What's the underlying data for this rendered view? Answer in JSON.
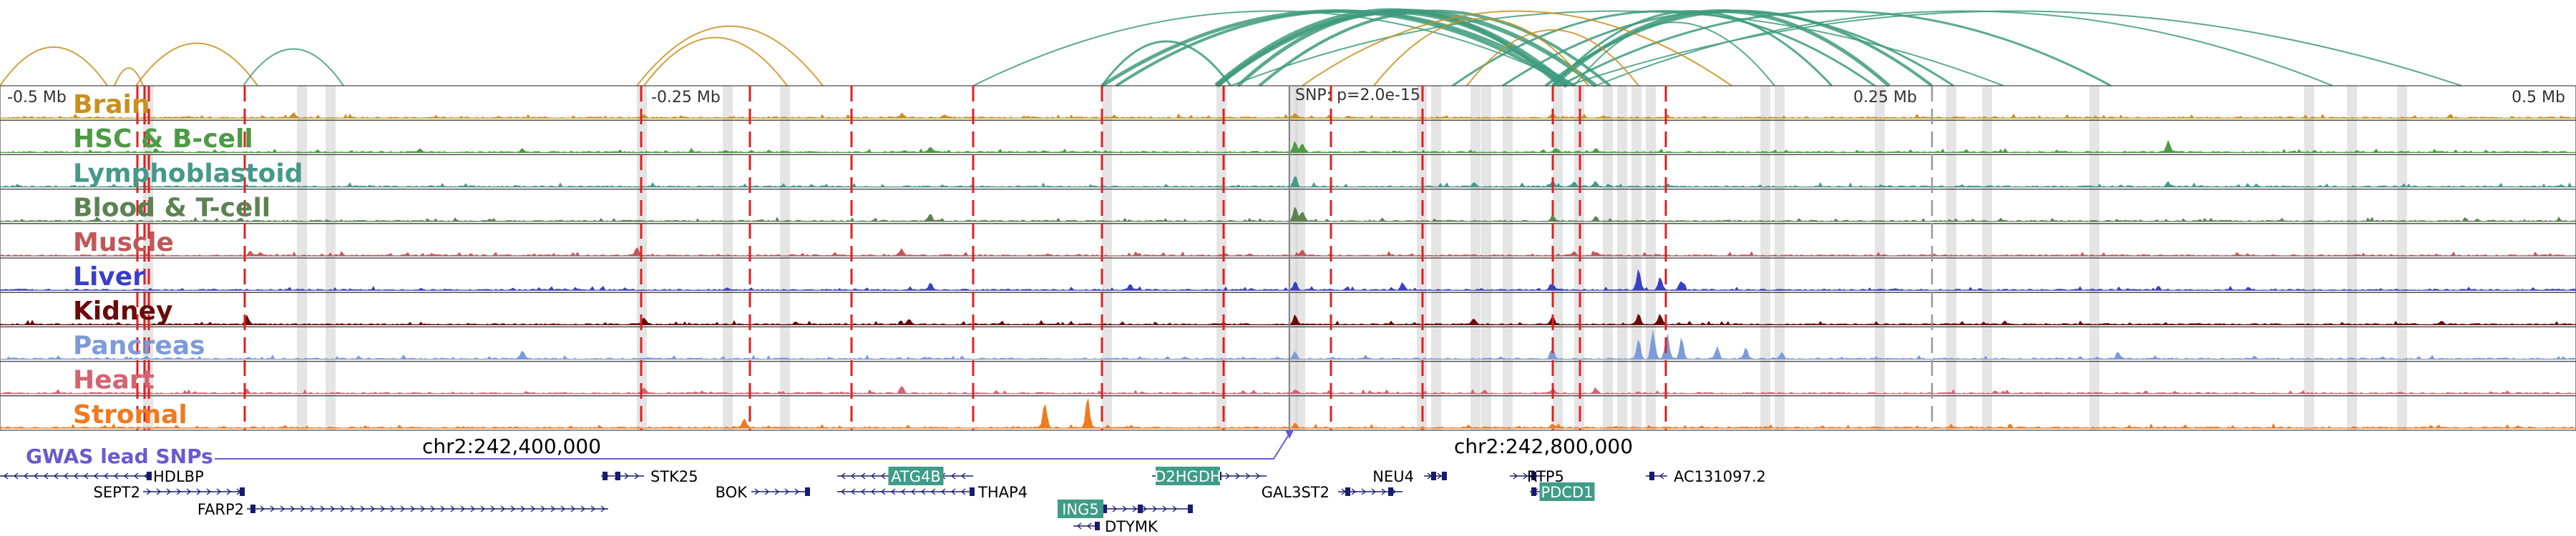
{
  "chart_data": {
    "type": "area",
    "region": {
      "range_labels": [
        "-0.5 Mb",
        "-0.25 Mb",
        "0.25 Mb",
        "0.5 Mb"
      ],
      "coordinate_labels": [
        "chr2:242,400,000",
        "chr2:242,800,000"
      ],
      "snp_label": "SNP: p=2.0e-15",
      "gwas_label": "GWAS lead SNPs"
    },
    "tracks": [
      {
        "name": "Brain",
        "color": "#c8901e",
        "peaks": [
          [
            410,
            7
          ],
          [
            900,
            5
          ],
          [
            1260,
            6
          ],
          [
            1320,
            5
          ],
          [
            1810,
            6
          ],
          [
            2170,
            5
          ]
        ]
      },
      {
        "name": "HSC & B-cell",
        "color": "#4e9a46",
        "peaks": [
          [
            1300,
            8
          ],
          [
            1810,
            14
          ],
          [
            1820,
            12
          ],
          [
            2175,
            6
          ],
          [
            2230,
            5
          ],
          [
            3030,
            16
          ]
        ]
      },
      {
        "name": "Lymphoblastoid",
        "color": "#46988a",
        "peaks": [
          [
            1810,
            16
          ],
          [
            2060,
            5
          ],
          [
            2170,
            8
          ],
          [
            2200,
            6
          ],
          [
            2230,
            7
          ],
          [
            3030,
            6
          ]
        ]
      },
      {
        "name": "Blood & T-cell",
        "color": "#5d8252",
        "peaks": [
          [
            1300,
            10
          ],
          [
            1810,
            22
          ],
          [
            1820,
            14
          ],
          [
            2170,
            6
          ],
          [
            2230,
            6
          ]
        ]
      },
      {
        "name": "Muscle",
        "color": "#c0585a",
        "peaks": [
          [
            350,
            6
          ],
          [
            890,
            12
          ],
          [
            1260,
            10
          ],
          [
            1820,
            8
          ],
          [
            2200,
            6
          ],
          [
            2230,
            5
          ]
        ]
      },
      {
        "name": "Liver",
        "color": "#3a3fc8",
        "peaks": [
          [
            1300,
            10
          ],
          [
            1580,
            8
          ],
          [
            1810,
            12
          ],
          [
            1960,
            10
          ],
          [
            2170,
            7
          ],
          [
            2290,
            30
          ],
          [
            2320,
            18
          ],
          [
            2350,
            12
          ]
        ]
      },
      {
        "name": "Kidney",
        "color": "#6a0b0a",
        "peaks": [
          [
            345,
            12
          ],
          [
            900,
            10
          ],
          [
            1270,
            8
          ],
          [
            1810,
            14
          ],
          [
            2060,
            8
          ],
          [
            2170,
            12
          ],
          [
            2290,
            16
          ],
          [
            2320,
            14
          ]
        ]
      },
      {
        "name": "Pancreas",
        "color": "#7d9bd8",
        "peaks": [
          [
            730,
            12
          ],
          [
            1810,
            10
          ],
          [
            2170,
            14
          ],
          [
            2290,
            28
          ],
          [
            2310,
            42
          ],
          [
            2330,
            36
          ],
          [
            2350,
            26
          ],
          [
            2400,
            18
          ],
          [
            2440,
            16
          ],
          [
            2490,
            10
          ],
          [
            2960,
            10
          ]
        ]
      },
      {
        "name": "Heart",
        "color": "#d46470",
        "peaks": [
          [
            345,
            6
          ],
          [
            900,
            8
          ],
          [
            1260,
            10
          ],
          [
            1810,
            6
          ],
          [
            2170,
            6
          ],
          [
            2230,
            5
          ]
        ]
      },
      {
        "name": "Stromal",
        "color": "#f07a1e",
        "peaks": [
          [
            1040,
            12
          ],
          [
            1460,
            36
          ],
          [
            1520,
            46
          ],
          [
            1810,
            6
          ],
          [
            2170,
            5
          ]
        ]
      }
    ],
    "genes": [
      {
        "name": "HDLBP",
        "highlight": false
      },
      {
        "name": "SEPT2",
        "highlight": false
      },
      {
        "name": "FARP2",
        "highlight": false
      },
      {
        "name": "STK25",
        "highlight": false
      },
      {
        "name": "BOK",
        "highlight": false
      },
      {
        "name": "ATG4B",
        "highlight": true
      },
      {
        "name": "THAP4",
        "highlight": false
      },
      {
        "name": "ING5",
        "highlight": true
      },
      {
        "name": "DTYMK",
        "highlight": false
      },
      {
        "name": "D2HGDH",
        "highlight": true
      },
      {
        "name": "GAL3ST2",
        "highlight": false
      },
      {
        "name": "NEU4",
        "highlight": false
      },
      {
        "name": "RTP5",
        "highlight": false
      },
      {
        "name": "PDCD1",
        "highlight": true
      },
      {
        "name": "AC131097.2",
        "highlight": false
      }
    ],
    "colors": {
      "loop_green": "#3e9b7c",
      "loop_gold": "#c8901e",
      "snp_marker_red": "#e02020",
      "gwas_purple": "#6a5acd",
      "gene_navy": "#1a1a6e",
      "highlight_gene_fill": "#3f9c86"
    }
  }
}
